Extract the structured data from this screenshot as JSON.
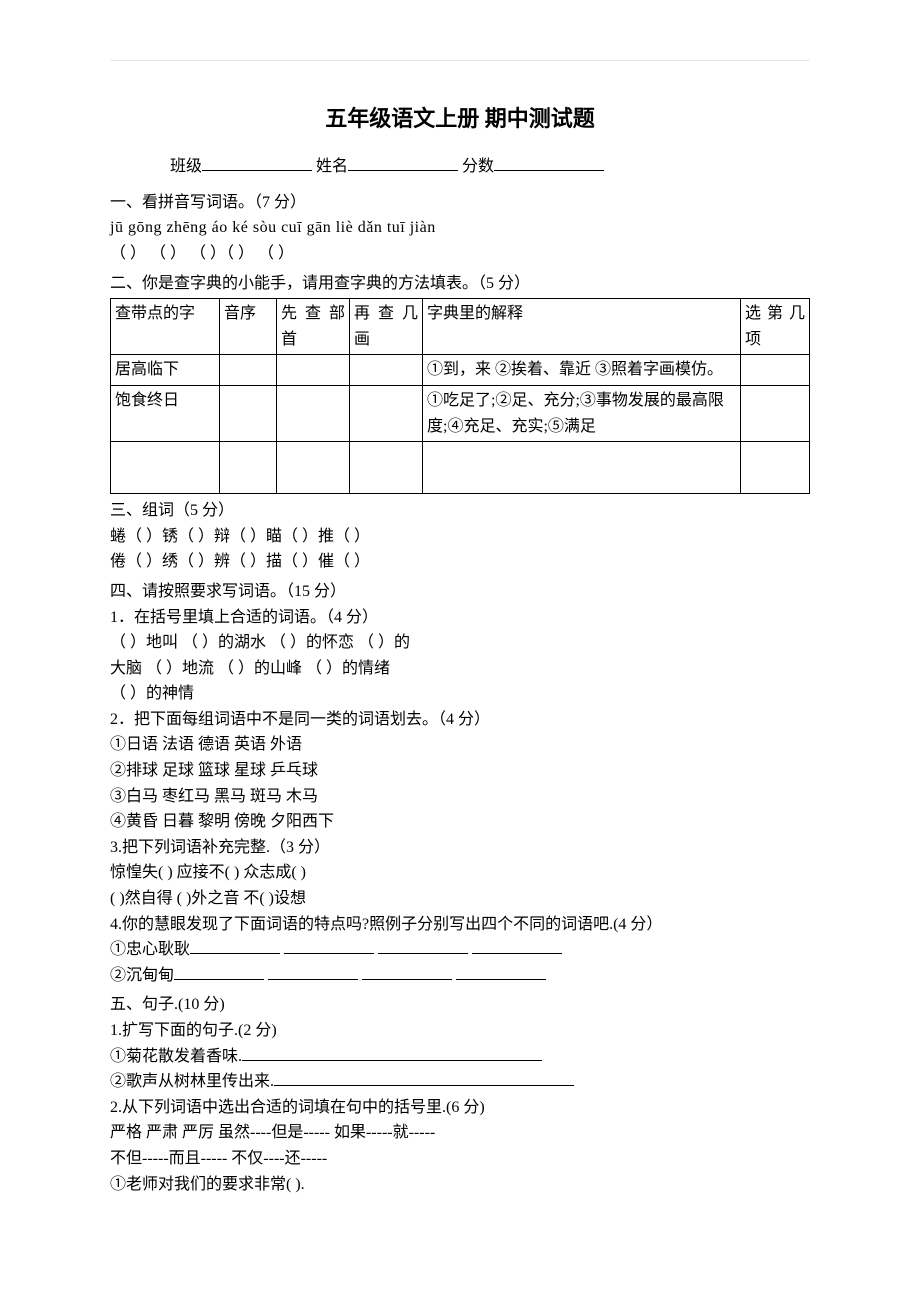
{
  "title": "五年级语文上册 期中测试题",
  "header": {
    "class_label": "班级",
    "name_label": "姓名",
    "score_label": "分数"
  },
  "s1": {
    "heading": "一、看拼音写词语。（7 分）",
    "pinyin": "jū gōng   zhēng áo    ké sòu    cuī gān liè dǎn     tuī jiàn",
    "parens": "（      ） （       ） （       ）（                ） （       ）"
  },
  "s2": {
    "heading": "二、你是查字典的小能手，请用查字典的方法填表。（5 分）",
    "cols": {
      "c1": "查带点的字",
      "c2": "音序",
      "c3": "先 查 部首",
      "c4": "再 查 几画",
      "c5": "字典里的解释",
      "c6": "选 第 几项"
    },
    "r1": {
      "word": "居高临下",
      "def": "①到，来 ②挨着、靠近 ③照着字画模仿。"
    },
    "r2": {
      "word": "饱食终日",
      "def": "①吃足了;②足、充分;③事物发展的最高限度;④充足、充实;⑤满足"
    }
  },
  "s3": {
    "heading": "三、组词（5 分）",
    "line1": "蜷（        ）锈（        ）辩（        ）瞄（        ）推（        ）",
    "line2": "倦（        ）绣（        ）辨（        ）描（        ）催（        ）"
  },
  "s4": {
    "heading": "四、请按照要求写词语。（15 分）",
    "sub1_heading": "1．在括号里填上合适的词语。（4 分）",
    "sub1_l1": "（        ）地叫      （          ）的湖水     （        ）的怀恋     （       ）的",
    "sub1_l2": "大脑     （        ）地流         （          ）的山峰        （        ）的情绪",
    "sub1_l3": "（        ）的神情",
    "sub2_heading": "2．把下面每组词语中不是同一类的词语划去。（4 分）",
    "sub2_l1": "①日语    法语    德语    英语    外语",
    "sub2_l2": "②排球    足球    篮球    星球    乒乓球",
    "sub2_l3": "③白马    枣红马    黑马    斑马    木马",
    "sub2_l4": "④黄昏    日暮     黎明    傍晚    夕阳西下",
    "sub3_heading": "3.把下列词语补充完整.（3 分）",
    "sub3_l1": "惊惶失(    )      应接不(    )      众志成(    )",
    "sub3_l2": "(    )然自得      (    )外之音    不(    )设想",
    "sub4_heading": "4.你的慧眼发现了下面词语的特点吗?照例子分别写出四个不同的词语吧.(4 分）",
    "sub4_l1_label": "①忠心耿耿",
    "sub4_l2_label": "②沉甸甸"
  },
  "s5": {
    "heading": "五、句子.(10 分)",
    "sub1_heading": "1.扩写下面的句子.(2 分)",
    "sub1_l1_label": "①菊花散发着香味.",
    "sub1_l2_label": "②歌声从树林里传出来.",
    "sub2_heading": "2.从下列词语中选出合适的词填在句中的括号里.(6 分)",
    "sub2_l1": "严格    严肃    严厉    虽然----但是-----   如果-----就-----",
    "sub2_l2": "不但-----而且-----       不仅----还-----",
    "sub2_l3": "①老师对我们的要求非常(         )."
  }
}
